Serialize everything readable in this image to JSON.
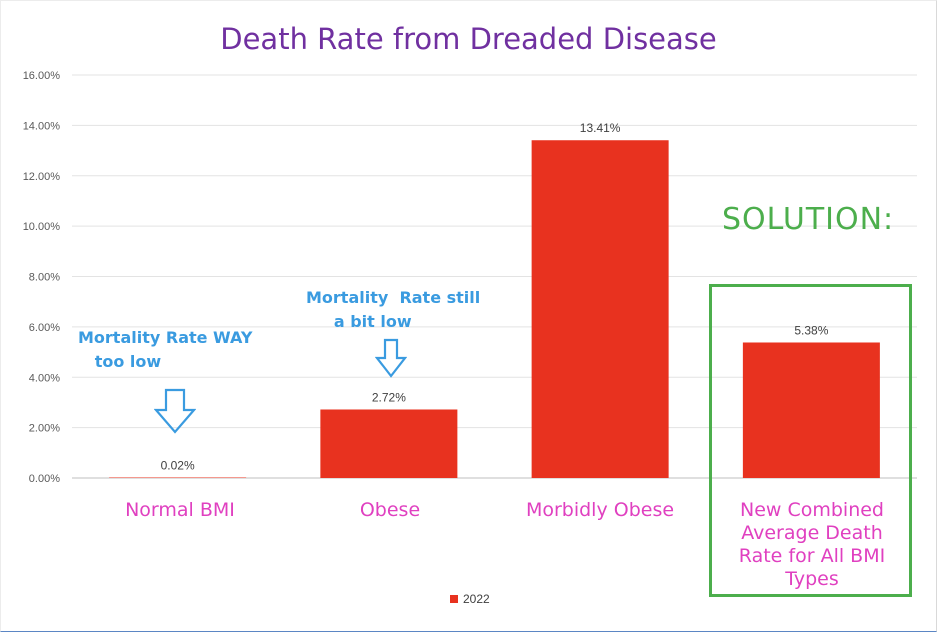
{
  "chart_data": {
    "type": "bar",
    "title": "Death Rate from Dreaded Disease",
    "categories": [
      "Normal BMI",
      "Obese",
      "Morbidly Obese",
      "New Combined Average Death Rate for All BMI Types"
    ],
    "series": [
      {
        "name": "2022",
        "values": [
          0.02,
          2.72,
          13.41,
          5.38
        ],
        "labels": [
          "0.02%",
          "2.72%",
          "13.41%",
          "5.38%"
        ]
      }
    ],
    "ylim": [
      0,
      16
    ],
    "yticks": [
      "0.00%",
      "2.00%",
      "4.00%",
      "6.00%",
      "8.00%",
      "10.00%",
      "12.00%",
      "14.00%",
      "16.00%"
    ],
    "grid": true,
    "legend_position": "bottom",
    "bar_color": "#e8321f",
    "annotations": {
      "note_normal": "Mortality Rate WAY\n   too low",
      "note_obese": "Mortality  Rate still\n     a bit low",
      "solution": "SOLUTION:"
    },
    "colors": {
      "title": "#7030a0",
      "category_labels": "#e040c0",
      "notes": "#3a9be0",
      "solution": "#4cae4c"
    }
  }
}
